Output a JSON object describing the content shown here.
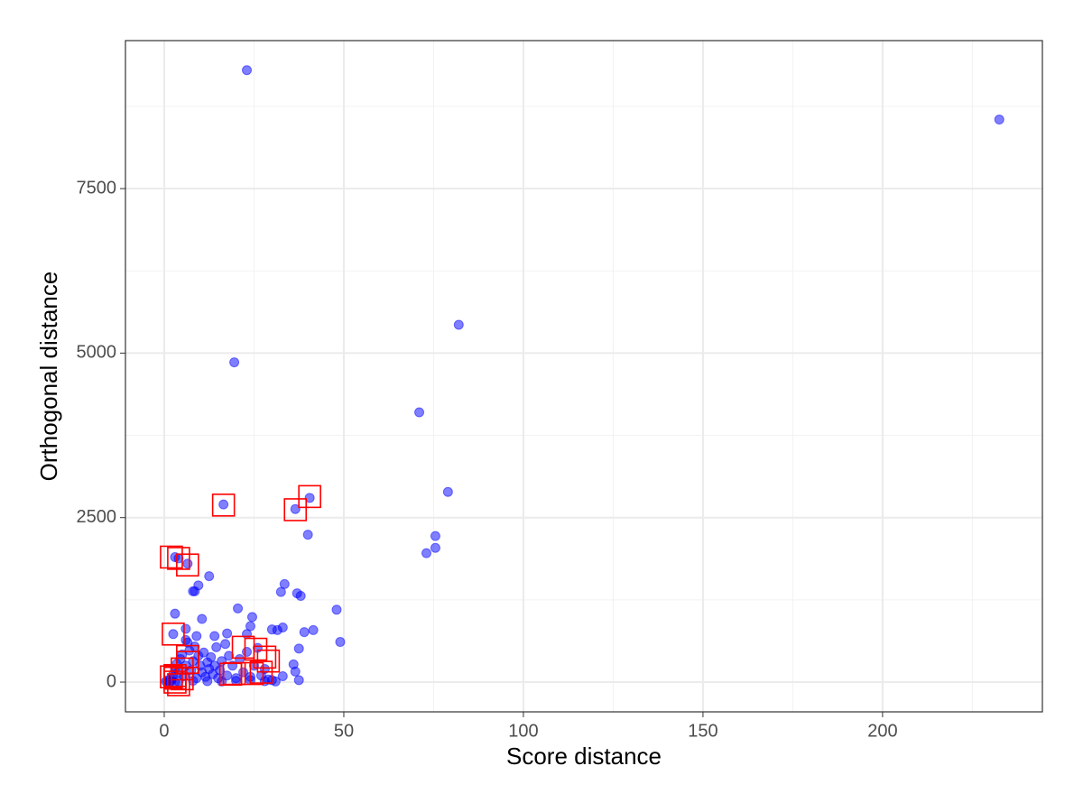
{
  "chart_data": {
    "type": "scatter",
    "x_label": "Score distance",
    "y_label": "Orthogonal distance",
    "xlim": [
      -10.8,
      244.5
    ],
    "ylim": [
      -452,
      9749
    ],
    "xticks": [
      0,
      50,
      100,
      150,
      200
    ],
    "yticks": [
      0,
      2500,
      5000,
      7500
    ],
    "xminor_ticks": [
      25,
      75,
      125,
      175,
      225
    ],
    "yminor_ticks": [
      1250,
      3750,
      6250,
      8750
    ],
    "grid": true,
    "series": [
      {
        "color": "#0000ff",
        "marker": "circle",
        "x": [
          23,
          232.5,
          82,
          19.5,
          71,
          79,
          75.5,
          75.5,
          73,
          40,
          40.5,
          36.5,
          16.5,
          3,
          4,
          6.5,
          12.5,
          9.5,
          8,
          8.5,
          33.5,
          32.5,
          37,
          38,
          48,
          49,
          41.5,
          39,
          30,
          31.5,
          33,
          20.5,
          24.5,
          24,
          3,
          6,
          10.5,
          2.5,
          14,
          17.5,
          23,
          37.5,
          36,
          36.5,
          37.5,
          33,
          0.5,
          1,
          1.5,
          2,
          2.5,
          3,
          3.5,
          4,
          4.5,
          5,
          5.5,
          6,
          6.5,
          7,
          7.5,
          8,
          8.5,
          9,
          9.5,
          10,
          10.5,
          11,
          11.5,
          12,
          12.5,
          13,
          13.5,
          14,
          14.5,
          15,
          15.5,
          16,
          17,
          17.5,
          18,
          19,
          20,
          21,
          22,
          23,
          24,
          25,
          26,
          27,
          28,
          29,
          30,
          31,
          4,
          8,
          12,
          16,
          20,
          24,
          28,
          6,
          9,
          2,
          1,
          3
        ],
        "values": [
          9300,
          8550,
          5430,
          4860,
          4100,
          2890,
          2220,
          2040,
          1960,
          2240,
          2800,
          2630,
          2700,
          1900,
          1880,
          1800,
          1610,
          1470,
          1380,
          1380,
          1490,
          1370,
          1350,
          1310,
          1100,
          610,
          790,
          760,
          800,
          790,
          830,
          1120,
          990,
          850,
          1040,
          810,
          960,
          730,
          700,
          740,
          730,
          510,
          270,
          160,
          30,
          90,
          10,
          30,
          5,
          50,
          120,
          200,
          280,
          150,
          350,
          420,
          90,
          250,
          600,
          480,
          180,
          320,
          540,
          60,
          400,
          250,
          150,
          450,
          80,
          300,
          200,
          380,
          120,
          250,
          530,
          60,
          180,
          320,
          580,
          100,
          400,
          250,
          60,
          350,
          150,
          460,
          80,
          250,
          520,
          100,
          200,
          40,
          30,
          10,
          10,
          20,
          15,
          10,
          20,
          30,
          15,
          640,
          700,
          20,
          0,
          0
        ]
      },
      {
        "color": "#ff0000",
        "marker": "square",
        "x": [
          2,
          4,
          6.5,
          16.5,
          36.5,
          40.5,
          2.5,
          6.5,
          6.5,
          5,
          3,
          2,
          3,
          4,
          18.5,
          19.5,
          25.5,
          28,
          24.5,
          27,
          29,
          22,
          5,
          3
        ],
        "values": [
          1900,
          1880,
          1780,
          2690,
          2620,
          2820,
          730,
          390,
          300,
          200,
          100,
          80,
          0,
          -40,
          120,
          130,
          500,
          380,
          130,
          150,
          320,
          530,
          50,
          60
        ]
      }
    ]
  }
}
